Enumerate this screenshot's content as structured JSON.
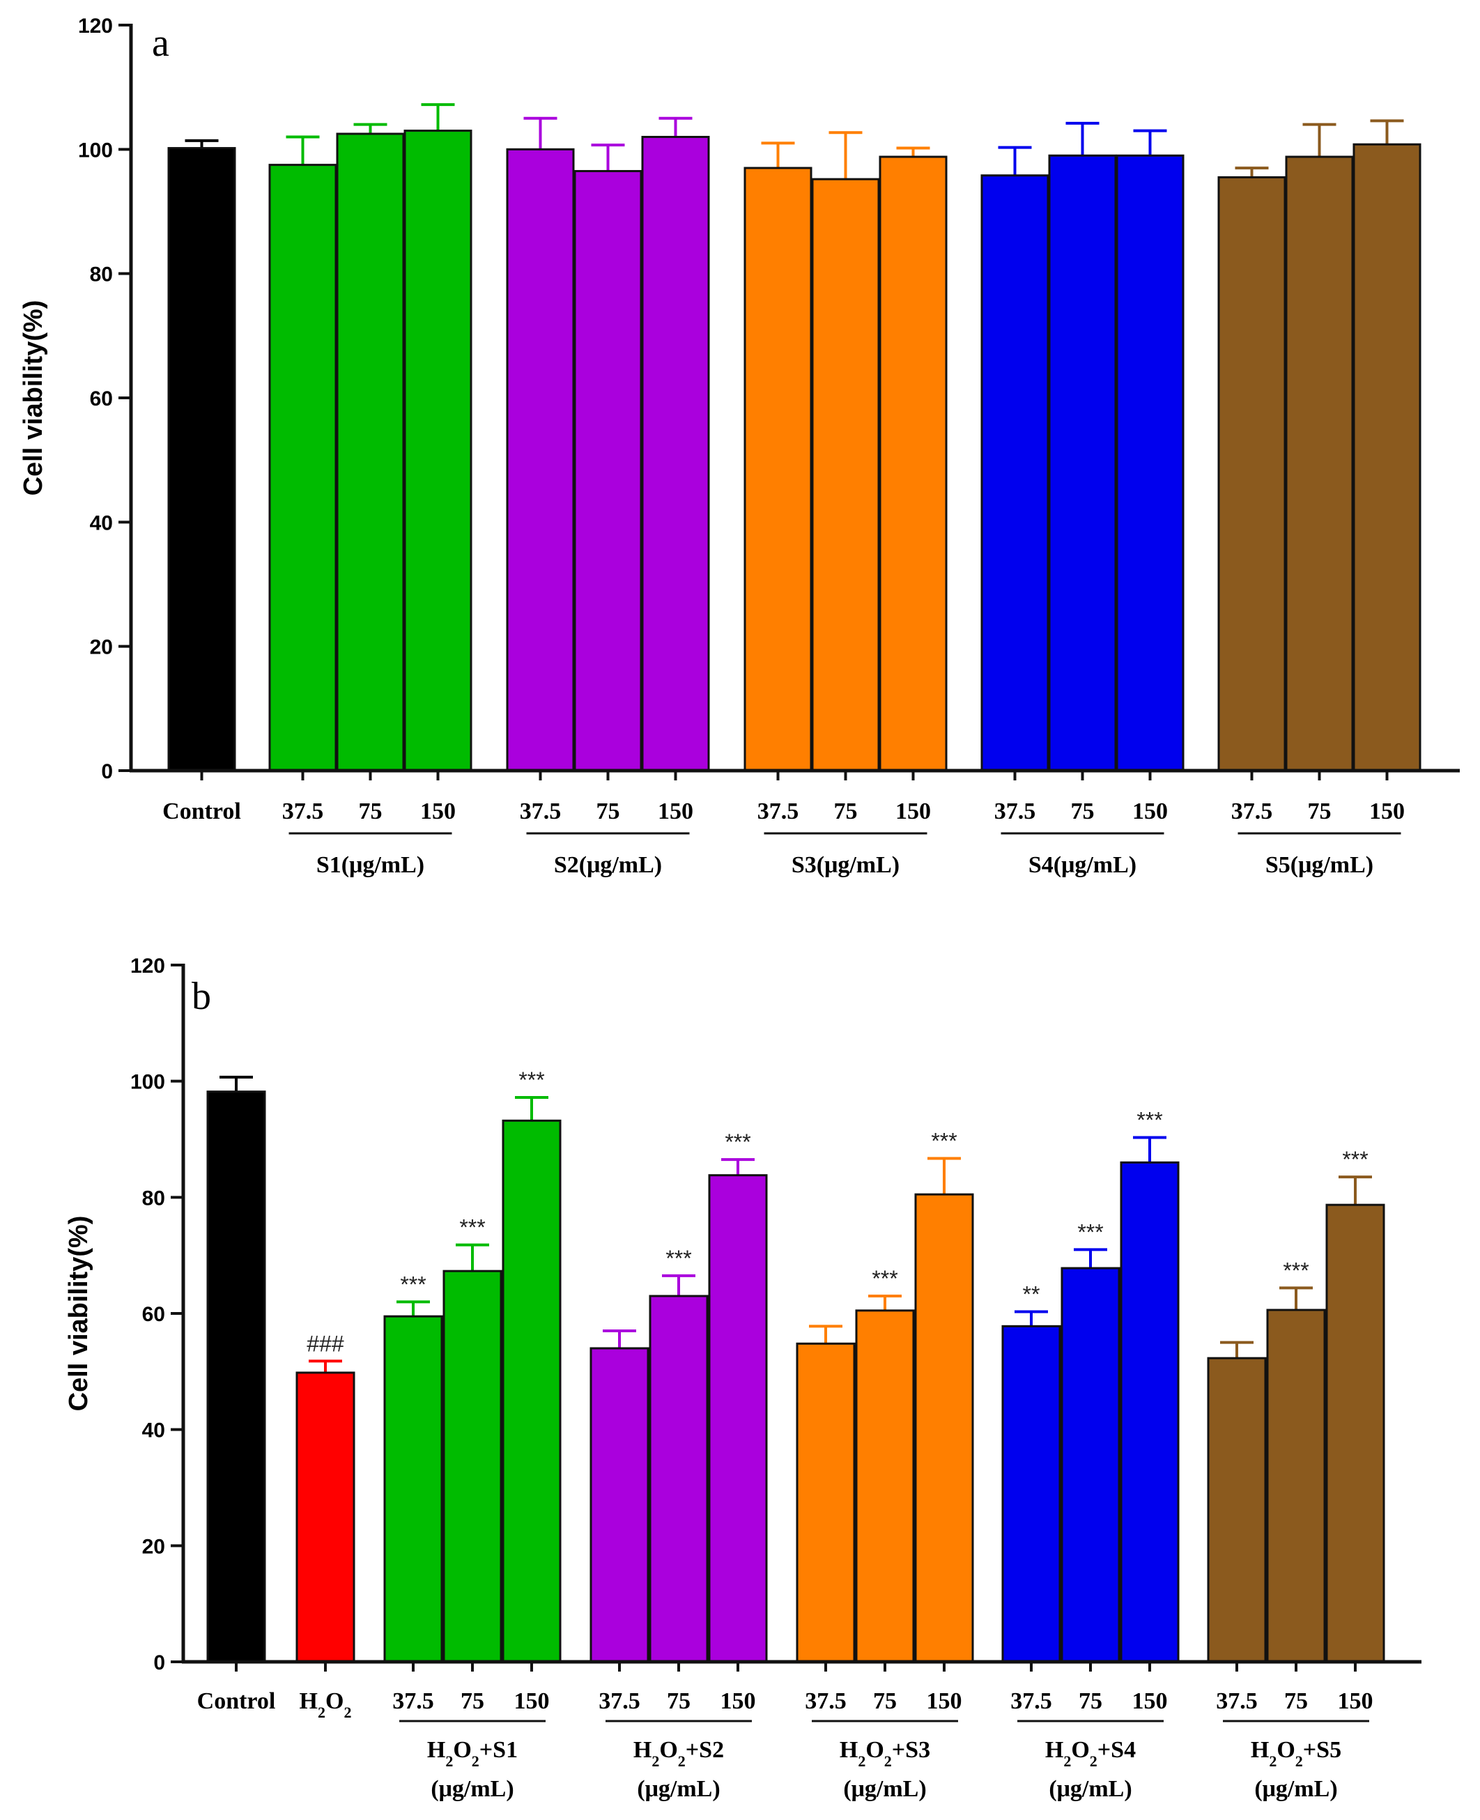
{
  "colors": {
    "Control": "#000000",
    "H2O2": "#ff0000",
    "S1": "#00bb00",
    "S2": "#aa00dd",
    "S3": "#ff7f00",
    "S4": "#0000ee",
    "S5": "#8b5a1e"
  },
  "chart_data": [
    {
      "type": "bar",
      "panel_label": "a",
      "ylabel": "Cell viability(%)",
      "ylim": [
        0,
        120
      ],
      "yticks": [
        0,
        20,
        40,
        60,
        80,
        100,
        120
      ],
      "categories": [
        {
          "label": "Control",
          "group": "Control",
          "value": 100.2,
          "error": 1.2
        },
        {
          "label": "37.5",
          "group": "S1",
          "value": 97.5,
          "error": 4.5
        },
        {
          "label": "75",
          "group": "S1",
          "value": 102.5,
          "error": 1.5
        },
        {
          "label": "150",
          "group": "S1",
          "value": 103.0,
          "error": 4.2
        },
        {
          "label": "37.5",
          "group": "S2",
          "value": 100.0,
          "error": 5.0
        },
        {
          "label": "75",
          "group": "S2",
          "value": 96.5,
          "error": 4.2
        },
        {
          "label": "150",
          "group": "S2",
          "value": 102.0,
          "error": 3.0
        },
        {
          "label": "37.5",
          "group": "S3",
          "value": 97.0,
          "error": 4.0
        },
        {
          "label": "75",
          "group": "S3",
          "value": 95.2,
          "error": 7.5
        },
        {
          "label": "150",
          "group": "S3",
          "value": 98.8,
          "error": 1.4
        },
        {
          "label": "37.5",
          "group": "S4",
          "value": 95.8,
          "error": 4.5
        },
        {
          "label": "75",
          "group": "S4",
          "value": 99.0,
          "error": 5.2
        },
        {
          "label": "150",
          "group": "S4",
          "value": 99.0,
          "error": 4.0
        },
        {
          "label": "37.5",
          "group": "S5",
          "value": 95.5,
          "error": 1.5
        },
        {
          "label": "75",
          "group": "S5",
          "value": 98.8,
          "error": 5.2
        },
        {
          "label": "150",
          "group": "S5",
          "value": 100.8,
          "error": 3.8
        }
      ],
      "groups": [
        {
          "key": "S1",
          "label": "S1(μg/mL)"
        },
        {
          "key": "S2",
          "label": "S2(μg/mL)"
        },
        {
          "key": "S3",
          "label": "S3(μg/mL)"
        },
        {
          "key": "S4",
          "label": "S4(μg/mL)"
        },
        {
          "key": "S5",
          "label": "S5(μg/mL)"
        }
      ]
    },
    {
      "type": "bar",
      "panel_label": "b",
      "ylabel": "Cell viability(%)",
      "ylim": [
        0,
        120
      ],
      "yticks": [
        0,
        20,
        40,
        60,
        80,
        100,
        120
      ],
      "categories": [
        {
          "label": "Control",
          "group": "Control",
          "value": 98.2,
          "error": 2.5,
          "sig": ""
        },
        {
          "label": "H₂O₂",
          "group": "H2O2",
          "value": 49.8,
          "error": 2.0,
          "sig": "###"
        },
        {
          "label": "37.5",
          "group": "S1",
          "value": 59.5,
          "error": 2.5,
          "sig": "***"
        },
        {
          "label": "75",
          "group": "S1",
          "value": 67.3,
          "error": 4.5,
          "sig": "***"
        },
        {
          "label": "150",
          "group": "S1",
          "value": 93.2,
          "error": 4.0,
          "sig": "***"
        },
        {
          "label": "37.5",
          "group": "S2",
          "value": 54.0,
          "error": 3.0,
          "sig": ""
        },
        {
          "label": "75",
          "group": "S2",
          "value": 63.0,
          "error": 3.5,
          "sig": "***"
        },
        {
          "label": "150",
          "group": "S2",
          "value": 83.8,
          "error": 2.7,
          "sig": "***"
        },
        {
          "label": "37.5",
          "group": "S3",
          "value": 54.8,
          "error": 3.0,
          "sig": ""
        },
        {
          "label": "75",
          "group": "S3",
          "value": 60.5,
          "error": 2.5,
          "sig": "***"
        },
        {
          "label": "150",
          "group": "S3",
          "value": 80.5,
          "error": 6.2,
          "sig": "***"
        },
        {
          "label": "37.5",
          "group": "S4",
          "value": 57.8,
          "error": 2.5,
          "sig": "**"
        },
        {
          "label": "75",
          "group": "S4",
          "value": 67.8,
          "error": 3.2,
          "sig": "***"
        },
        {
          "label": "150",
          "group": "S4",
          "value": 86.0,
          "error": 4.3,
          "sig": "***"
        },
        {
          "label": "37.5",
          "group": "S5",
          "value": 52.3,
          "error": 2.7,
          "sig": ""
        },
        {
          "label": "75",
          "group": "S5",
          "value": 60.6,
          "error": 3.8,
          "sig": "***"
        },
        {
          "label": "150",
          "group": "S5",
          "value": 78.7,
          "error": 4.8,
          "sig": "***"
        }
      ],
      "groups": [
        {
          "key": "S1",
          "label": "H₂O₂+S1",
          "unit": "(μg/mL)"
        },
        {
          "key": "S2",
          "label": "H₂O₂+S2",
          "unit": "(μg/mL)"
        },
        {
          "key": "S3",
          "label": "H₂O₂+S3",
          "unit": "(μg/mL)"
        },
        {
          "key": "S4",
          "label": "H₂O₂+S4",
          "unit": "(μg/mL)"
        },
        {
          "key": "S5",
          "label": "H₂O₂+S5",
          "unit": "(μg/mL)"
        }
      ]
    }
  ]
}
